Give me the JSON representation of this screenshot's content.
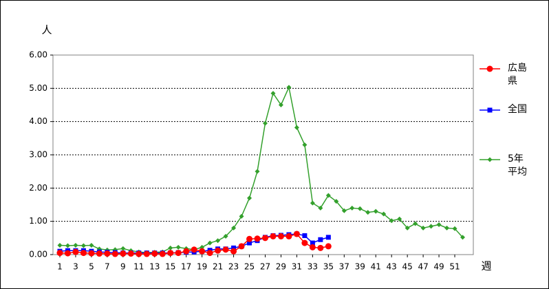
{
  "chart_data": {
    "type": "line",
    "y_label": "人",
    "x_label": "週",
    "x": [
      1,
      2,
      3,
      4,
      5,
      6,
      7,
      8,
      9,
      10,
      11,
      12,
      13,
      14,
      15,
      16,
      17,
      18,
      19,
      20,
      21,
      22,
      23,
      24,
      25,
      26,
      27,
      28,
      29,
      30,
      31,
      32,
      33,
      34,
      35,
      36,
      37,
      38,
      39,
      40,
      41,
      42,
      43,
      44,
      45,
      46,
      47,
      48,
      49,
      50,
      51,
      52
    ],
    "xlim": [
      0.13,
      53.35
    ],
    "xticks": [
      1,
      3,
      5,
      7,
      9,
      11,
      13,
      15,
      17,
      19,
      21,
      23,
      25,
      27,
      29,
      31,
      33,
      35,
      37,
      39,
      41,
      43,
      45,
      47,
      49,
      51
    ],
    "ylim": [
      0,
      6
    ],
    "yticks": [
      {
        "value": 0,
        "label": "0.00"
      },
      {
        "value": 1,
        "label": "1.00"
      },
      {
        "value": 2,
        "label": "2.00"
      },
      {
        "value": 3,
        "label": "3.00"
      },
      {
        "value": 4,
        "label": "4.00"
      },
      {
        "value": 5,
        "label": "5.00"
      },
      {
        "value": 6,
        "label": "6.00"
      }
    ],
    "grid": true,
    "series": [
      {
        "name": "広島県",
        "color": "#ff0000",
        "marker": "circle",
        "values": [
          0.05,
          0.04,
          0.08,
          0.05,
          0.04,
          0.03,
          0.03,
          0.02,
          0.03,
          0.03,
          0.02,
          0.02,
          0.03,
          0.02,
          0.05,
          0.05,
          0.1,
          0.15,
          0.1,
          0.05,
          0.12,
          0.15,
          0.1,
          0.25,
          0.47,
          0.48,
          0.5,
          0.55,
          0.55,
          0.55,
          0.62,
          0.35,
          0.22,
          0.2,
          0.25,
          null,
          null,
          null,
          null,
          null,
          null,
          null,
          null,
          null,
          null,
          null,
          null,
          null,
          null,
          null,
          null,
          null
        ]
      },
      {
        "name": "全国",
        "color": "#0000ff",
        "marker": "square",
        "values": [
          0.1,
          0.12,
          0.12,
          0.12,
          0.1,
          0.08,
          0.07,
          0.06,
          0.05,
          0.05,
          0.05,
          0.05,
          0.05,
          0.05,
          0.05,
          0.06,
          0.07,
          0.08,
          0.1,
          0.13,
          0.17,
          0.17,
          0.2,
          0.25,
          0.35,
          0.42,
          0.52,
          0.57,
          0.58,
          0.6,
          0.62,
          0.57,
          0.35,
          0.45,
          0.52,
          null,
          null,
          null,
          null,
          null,
          null,
          null,
          null,
          null,
          null,
          null,
          null,
          null,
          null,
          null,
          null,
          null
        ]
      },
      {
        "name": "5年平均",
        "color": "#33a02c",
        "marker": "diamond",
        "values": [
          0.28,
          0.27,
          0.28,
          0.27,
          0.28,
          0.17,
          0.14,
          0.15,
          0.18,
          0.12,
          0.08,
          0.06,
          0.07,
          0.08,
          0.2,
          0.22,
          0.18,
          0.15,
          0.22,
          0.35,
          0.42,
          0.55,
          0.8,
          1.15,
          1.7,
          2.5,
          3.95,
          4.85,
          4.5,
          5.03,
          3.82,
          3.3,
          1.55,
          1.4,
          1.78,
          1.6,
          1.32,
          1.4,
          1.38,
          1.27,
          1.3,
          1.22,
          1.02,
          1.07,
          0.8,
          0.93,
          0.8,
          0.85,
          0.9,
          0.8,
          0.78,
          0.52
        ]
      }
    ]
  }
}
